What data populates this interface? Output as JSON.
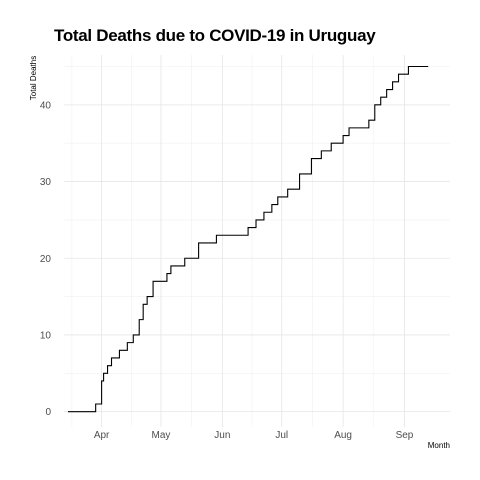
{
  "chart_data": {
    "type": "line",
    "title": "Total Deaths due to COVID-19 in Uruguay",
    "xlabel": "Month",
    "ylabel": "Total Deaths",
    "x_tick_labels": [
      "Apr",
      "May",
      "Jun",
      "Jul",
      "Aug",
      "Sep"
    ],
    "y_ticks": [
      0,
      10,
      20,
      30,
      40
    ],
    "xlim": [
      "2020-03-13",
      "2020-09-24"
    ],
    "ylim": [
      -2,
      46.5
    ],
    "grid": true,
    "line_color": "#000000",
    "series": [
      {
        "values": [
          [
            "2020-03-15",
            0
          ],
          [
            "2020-03-28",
            0
          ],
          [
            "2020-03-29",
            1
          ],
          [
            "2020-03-31",
            1
          ],
          [
            "2020-04-01",
            4
          ],
          [
            "2020-04-02",
            5
          ],
          [
            "2020-04-04",
            6
          ],
          [
            "2020-04-06",
            7
          ],
          [
            "2020-04-10",
            8
          ],
          [
            "2020-04-14",
            9
          ],
          [
            "2020-04-17",
            10
          ],
          [
            "2020-04-20",
            12
          ],
          [
            "2020-04-22",
            14
          ],
          [
            "2020-04-24",
            15
          ],
          [
            "2020-04-27",
            17
          ],
          [
            "2020-05-04",
            18
          ],
          [
            "2020-05-06",
            19
          ],
          [
            "2020-05-13",
            20
          ],
          [
            "2020-05-20",
            22
          ],
          [
            "2020-05-29",
            23
          ],
          [
            "2020-06-14",
            24
          ],
          [
            "2020-06-18",
            25
          ],
          [
            "2020-06-22",
            26
          ],
          [
            "2020-06-26",
            27
          ],
          [
            "2020-06-29",
            28
          ],
          [
            "2020-07-04",
            29
          ],
          [
            "2020-07-10",
            31
          ],
          [
            "2020-07-16",
            33
          ],
          [
            "2020-07-21",
            34
          ],
          [
            "2020-07-26",
            35
          ],
          [
            "2020-08-01",
            36
          ],
          [
            "2020-08-04",
            37
          ],
          [
            "2020-08-14",
            38
          ],
          [
            "2020-08-17",
            40
          ],
          [
            "2020-08-20",
            41
          ],
          [
            "2020-08-23",
            42
          ],
          [
            "2020-08-26",
            43
          ],
          [
            "2020-08-29",
            44
          ],
          [
            "2020-09-03",
            45
          ],
          [
            "2020-09-13",
            45
          ]
        ]
      }
    ]
  }
}
